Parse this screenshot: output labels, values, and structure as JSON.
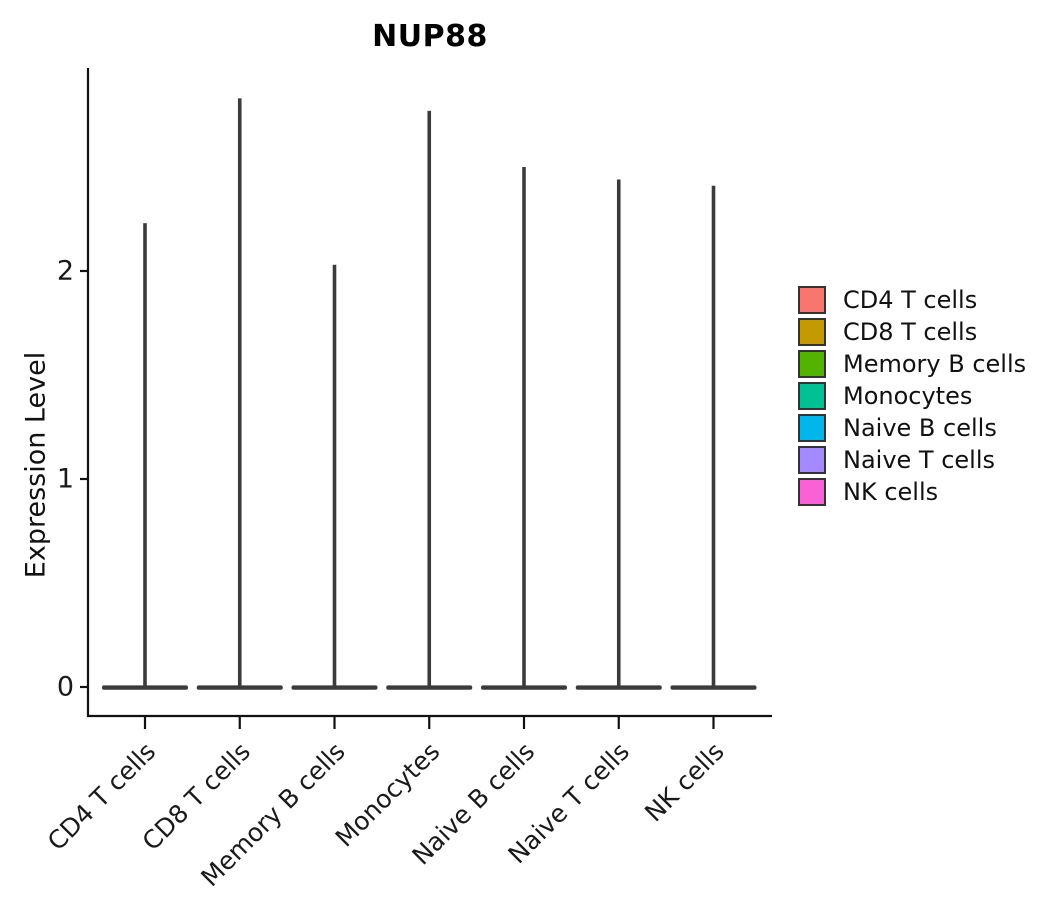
{
  "chart_data": {
    "type": "violin",
    "title": "NUP88",
    "ylabel": "Expression Level",
    "xlabel": "",
    "y_ticks": [
      "0",
      "1",
      "2"
    ],
    "ylim": [
      -0.1,
      3.1
    ],
    "grid": false,
    "legend_position": "right",
    "x_label_angle_deg": 45,
    "categories": [
      "CD4 T cells",
      "CD8 T cells",
      "Memory B cells",
      "Monocytes",
      "Naive B cells",
      "Naive T cells",
      "NK cells"
    ],
    "series": [
      {
        "name": "CD4 T cells",
        "color": "#F8766D",
        "max_expression": 2.23,
        "bulk_at": 0
      },
      {
        "name": "CD8 T cells",
        "color": "#C49A00",
        "max_expression": 2.83,
        "bulk_at": 0
      },
      {
        "name": "Memory B cells",
        "color": "#53B400",
        "max_expression": 2.03,
        "bulk_at": 0
      },
      {
        "name": "Monocytes",
        "color": "#00C094",
        "max_expression": 2.77,
        "bulk_at": 0
      },
      {
        "name": "Naive B cells",
        "color": "#00B6EB",
        "max_expression": 2.5,
        "bulk_at": 0
      },
      {
        "name": "Naive T cells",
        "color": "#A58AFF",
        "max_expression": 2.44,
        "bulk_at": 0
      },
      {
        "name": "NK cells",
        "color": "#FB61D7",
        "max_expression": 2.41,
        "bulk_at": 0
      }
    ],
    "violin_outline_color": "#3b3b3b",
    "axis_color": "#111111"
  }
}
